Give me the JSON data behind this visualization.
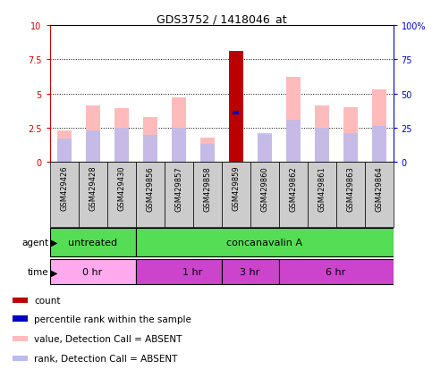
{
  "title": "GDS3752 / 1418046_at",
  "samples": [
    "GSM429426",
    "GSM429428",
    "GSM429430",
    "GSM429856",
    "GSM429857",
    "GSM429858",
    "GSM429859",
    "GSM429860",
    "GSM429862",
    "GSM429861",
    "GSM429863",
    "GSM429864"
  ],
  "value_bars": [
    2.3,
    4.1,
    3.9,
    3.3,
    4.7,
    1.8,
    8.1,
    2.0,
    6.2,
    4.1,
    4.0,
    5.3
  ],
  "rank_bars": [
    1.7,
    2.3,
    2.5,
    2.0,
    2.5,
    1.3,
    3.6,
    2.1,
    3.1,
    2.5,
    2.1,
    2.6
  ],
  "count_bar_index": 6,
  "count_bar_value": 8.1,
  "percentile_rank_value": 3.6,
  "grid_values": [
    2.5,
    5.0,
    7.5
  ],
  "bar_color_value": "#ffbbbb",
  "bar_color_rank": "#bbbbee",
  "bar_color_count": "#bb0000",
  "bar_color_percentile": "#0000bb",
  "sample_box_color": "#cccccc",
  "left_axis_color": "#cc0000",
  "right_axis_color": "#0000cc",
  "agent_color": "#55dd55",
  "time_color_0hr": "#ffaaee",
  "time_color_rest": "#cc44cc",
  "legend_items": [
    {
      "color": "#bb0000",
      "label": "count"
    },
    {
      "color": "#0000bb",
      "label": "percentile rank within the sample"
    },
    {
      "color": "#ffbbbb",
      "label": "value, Detection Call = ABSENT"
    },
    {
      "color": "#bbbbee",
      "label": "rank, Detection Call = ABSENT"
    }
  ]
}
